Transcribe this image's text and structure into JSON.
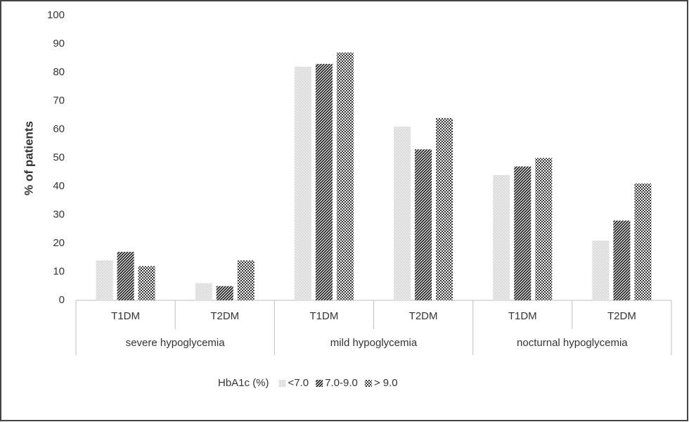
{
  "chart_data": {
    "type": "bar",
    "y_label": "% of patients",
    "categories": [
      "T1DM",
      "T2DM",
      "T1DM",
      "T2DM",
      "T1DM",
      "T2DM"
    ],
    "groups": [
      "severe hypoglycemia",
      "mild hypoglycemia",
      "nocturnal hypoglycemia"
    ],
    "legend_title": "HbA1c (%)",
    "series": [
      {
        "name": "<7.0",
        "color": "#c8c8c8",
        "pattern": "dots",
        "values": [
          14,
          6,
          82,
          61,
          44,
          21
        ]
      },
      {
        "name": "7.0-9.0",
        "color": "#111111",
        "pattern": "diagonal",
        "values": [
          17,
          5,
          83,
          53,
          47,
          28
        ]
      },
      {
        "name": "> 9.0",
        "color": "#333333",
        "pattern": "grid",
        "values": [
          12,
          14,
          87,
          64,
          50,
          41
        ]
      }
    ],
    "ylim": [
      0,
      100
    ],
    "yticks": [
      0,
      10,
      20,
      30,
      40,
      50,
      60,
      70,
      80,
      90,
      100
    ],
    "grid": false
  }
}
